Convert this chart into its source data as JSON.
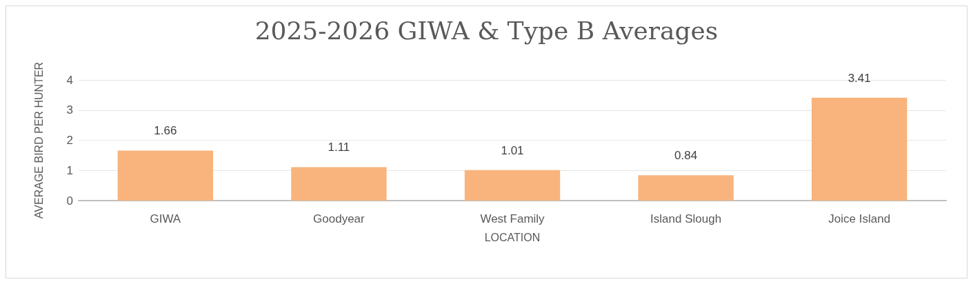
{
  "chart_data": {
    "type": "bar",
    "title": "2025-2026 GIWA & Type B Averages",
    "xlabel": "LOCATION",
    "ylabel": "AVERAGE BIRD PER HUNTER",
    "categories": [
      "GIWA",
      "Goodyear",
      "West Family",
      "Island Slough",
      "Joice Island"
    ],
    "values": [
      1.66,
      1.11,
      1.01,
      0.84,
      3.41
    ],
    "color": "#f8b47c",
    "ylim": [
      0,
      4
    ],
    "yticks": [
      0,
      1,
      2,
      3,
      4
    ],
    "grid": "y",
    "data_labels": true
  }
}
